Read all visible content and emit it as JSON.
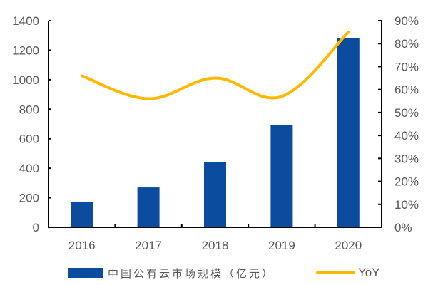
{
  "chart_data": {
    "type": "bar",
    "title": "",
    "xlabel": "",
    "ylabel": "",
    "categories": [
      "2016",
      "2017",
      "2018",
      "2019",
      "2020"
    ],
    "series": [
      {
        "name": "中国公有云市场规模（亿元）",
        "type": "bar",
        "axis": "left",
        "color": "#0B4C9E",
        "values": [
          174,
          270,
          444,
          695,
          1284
        ]
      },
      {
        "name": "YoY",
        "type": "line",
        "axis": "right",
        "color": "#FFB800",
        "values": [
          66,
          56,
          65,
          57,
          85
        ],
        "unit": "%"
      }
    ],
    "y_left": {
      "ylim": [
        0,
        1400
      ],
      "ticks": [
        "0",
        "200",
        "400",
        "600",
        "800",
        "1000",
        "1200",
        "1400"
      ]
    },
    "y_right": {
      "ylim": [
        0,
        90
      ],
      "ticks": [
        "0%",
        "10%",
        "20%",
        "30%",
        "40%",
        "50%",
        "60%",
        "70%",
        "80%",
        "90%"
      ]
    },
    "grid": false,
    "legend_position": "bottom"
  },
  "legend": {
    "bar_label": "中国公有云市场规模（亿元）",
    "line_label": "YoY"
  }
}
